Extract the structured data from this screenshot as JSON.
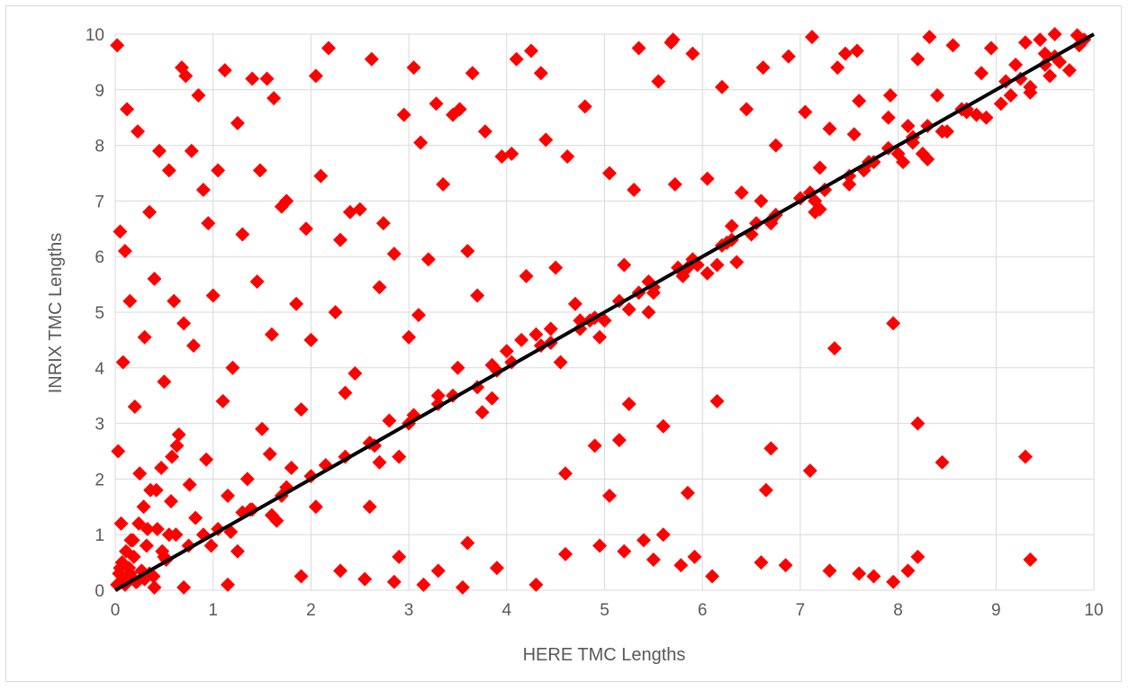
{
  "chart_data": {
    "type": "scatter",
    "title": "",
    "xlabel": "HERE TMC Lengths",
    "ylabel": "INRIX TMC Lengths",
    "xlim": [
      0,
      10
    ],
    "ylim": [
      0,
      10
    ],
    "x_ticks": [
      "0",
      "1",
      "2",
      "3",
      "4",
      "5",
      "6",
      "7",
      "8",
      "9",
      "10"
    ],
    "y_ticks": [
      "0",
      "1",
      "2",
      "3",
      "4",
      "5",
      "6",
      "7",
      "8",
      "9",
      "10"
    ],
    "grid": true,
    "legend": "none",
    "marker": "diamond",
    "series": [
      {
        "color": "#ff0000",
        "x": [
          0.02,
          0.12,
          0.23,
          0.45,
          0.68,
          0.72,
          0.85,
          1.12,
          1.4,
          1.55,
          1.62,
          2.05,
          2.18,
          2.62,
          3.05,
          3.28,
          3.45,
          3.65,
          4.1,
          4.25,
          4.35,
          4.8,
          5.35,
          5.55,
          5.68,
          5.7,
          5.9,
          6.2,
          6.45,
          6.62,
          6.88,
          7.12,
          7.38,
          7.46,
          7.58,
          7.92,
          8.2,
          8.32,
          8.56,
          8.95,
          9.3,
          9.45,
          9.6,
          9.83,
          0.05,
          0.35,
          0.55,
          0.78,
          0.9,
          1.05,
          1.25,
          1.48,
          1.75,
          1.95,
          2.3,
          2.5,
          2.74,
          2.95,
          3.12,
          3.35,
          3.52,
          3.78,
          3.95,
          4.05,
          4.4,
          4.62,
          5.05,
          5.3,
          5.72,
          6.05,
          6.4,
          6.75,
          7.05,
          7.3,
          7.6,
          7.9,
          8.4,
          8.85,
          9.2,
          9.5,
          0.1,
          0.4,
          0.6,
          0.95,
          1.3,
          1.7,
          2.1,
          2.4,
          2.85,
          3.2,
          3.6,
          4.2,
          4.5,
          5.2,
          5.85,
          6.3,
          6.6,
          7.2,
          7.55,
          8.1,
          8.5,
          9.05,
          9.55,
          0.15,
          0.3,
          0.7,
          1.0,
          1.45,
          1.85,
          2.25,
          2.7,
          3.1,
          3.7,
          4.15,
          4.7,
          5.0,
          5.45,
          6.15,
          6.55,
          7.25,
          7.75,
          8.3,
          8.8,
          9.35,
          0.08,
          0.5,
          0.8,
          1.2,
          1.6,
          2.0,
          2.45,
          3.0,
          3.5,
          4.0,
          4.45,
          4.9,
          5.5,
          5.95,
          6.5,
          7.0,
          7.5,
          8.0,
          8.45,
          9.15,
          9.65,
          0.2,
          0.65,
          1.1,
          1.5,
          1.9,
          2.35,
          2.8,
          3.3,
          3.85,
          4.3,
          4.75,
          5.25,
          5.8,
          6.2,
          6.7,
          7.15,
          7.65,
          8.15,
          8.7,
          9.25,
          0.03,
          0.25,
          0.42,
          0.58,
          0.76,
          0.93,
          1.15,
          1.35,
          1.58,
          1.8,
          0.06,
          0.18,
          0.33,
          0.48,
          0.62,
          0.82,
          0.98,
          1.18,
          1.38,
          1.65,
          4.6,
          4.95,
          5.2,
          5.4,
          5.6,
          5.78,
          5.92,
          6.1,
          6.6,
          6.85,
          7.3,
          7.6,
          7.75,
          7.95,
          8.1,
          8.2,
          9.35,
          4.3,
          3.9,
          3.6,
          3.3,
          2.9,
          2.6,
          5.5,
          5.05,
          6.65,
          7.1,
          8.2,
          8.45,
          9.3,
          7.35,
          7.95,
          6.15,
          6.7,
          5.85,
          5.15,
          4.6,
          4.9,
          5.6,
          5.25,
          0.4,
          0.1,
          0.3,
          0.15,
          0.05,
          0.22,
          0.7,
          1.15,
          1.9,
          2.3,
          2.55,
          2.85,
          3.15,
          3.55,
          0.5,
          0.9,
          1.3,
          1.75,
          2.15,
          2.6,
          3.05,
          3.45,
          3.9,
          4.35,
          4.85,
          5.35,
          5.75,
          6.25,
          6.75,
          7.25,
          7.7,
          8.15,
          8.65,
          9.1,
          9.6,
          9.9,
          1.25,
          2.05,
          2.9,
          3.75,
          4.55,
          5.45,
          6.35,
          7.2,
          8.05,
          8.9,
          9.75,
          0.35,
          0.75,
          1.05,
          1.4,
          1.7,
          2.0,
          2.35,
          2.65,
          3.0,
          3.3,
          3.7,
          4.05,
          4.45,
          4.75,
          5.15,
          5.5,
          5.9,
          6.3,
          6.7,
          7.1,
          7.5,
          7.9,
          8.3,
          8.7,
          9.1,
          9.5,
          9.85,
          0.55,
          1.6,
          2.7,
          3.85,
          4.95,
          6.05,
          7.15,
          8.25,
          9.35,
          0.02,
          0.04,
          0.07,
          0.09,
          0.11,
          0.14,
          0.16,
          0.19,
          0.21,
          0.24,
          0.27,
          0.29,
          0.32,
          0.36,
          0.39,
          0.43,
          0.47,
          0.52,
          0.57,
          0.63
        ],
        "y": [
          9.8,
          8.65,
          8.25,
          7.9,
          9.4,
          9.25,
          8.9,
          9.35,
          9.2,
          9.2,
          8.85,
          9.25,
          9.75,
          9.55,
          9.4,
          8.75,
          8.55,
          9.3,
          9.55,
          9.7,
          9.3,
          8.7,
          9.75,
          9.15,
          9.85,
          9.9,
          9.65,
          9.05,
          8.65,
          9.4,
          9.6,
          9.95,
          9.4,
          9.65,
          9.7,
          8.9,
          9.55,
          9.95,
          9.8,
          9.75,
          9.85,
          9.9,
          10.0,
          9.98,
          6.45,
          6.8,
          7.55,
          7.9,
          7.2,
          7.55,
          8.4,
          7.55,
          7.0,
          6.5,
          6.3,
          6.85,
          6.6,
          8.55,
          8.05,
          7.3,
          8.65,
          8.25,
          7.8,
          7.85,
          8.1,
          7.8,
          7.5,
          7.2,
          7.3,
          7.4,
          7.15,
          8.0,
          8.6,
          8.3,
          8.8,
          8.5,
          8.9,
          9.3,
          9.45,
          9.65,
          6.1,
          5.6,
          5.2,
          6.6,
          6.4,
          6.9,
          7.45,
          6.8,
          6.05,
          5.95,
          6.1,
          5.65,
          5.8,
          5.85,
          5.8,
          6.55,
          7.0,
          7.6,
          8.2,
          8.35,
          8.25,
          8.75,
          9.25,
          5.2,
          4.55,
          4.8,
          5.3,
          5.55,
          5.15,
          5.0,
          5.45,
          4.95,
          5.3,
          4.5,
          5.15,
          4.85,
          5.55,
          5.85,
          6.6,
          7.2,
          7.7,
          7.75,
          8.55,
          9.05,
          4.1,
          3.75,
          4.4,
          4.0,
          4.6,
          4.5,
          3.9,
          4.55,
          4.0,
          4.3,
          4.7,
          4.9,
          5.35,
          5.85,
          6.4,
          7.05,
          7.3,
          7.85,
          8.25,
          8.9,
          9.5,
          3.3,
          2.8,
          3.4,
          2.9,
          3.25,
          3.55,
          3.05,
          3.5,
          4.05,
          4.6,
          4.85,
          5.05,
          5.65,
          6.2,
          6.6,
          7.0,
          7.55,
          8.05,
          8.6,
          9.2,
          2.5,
          2.1,
          1.8,
          2.4,
          1.9,
          2.35,
          1.7,
          2.0,
          2.45,
          2.2,
          1.2,
          0.9,
          1.1,
          0.7,
          1.0,
          1.3,
          0.8,
          1.05,
          1.45,
          1.25,
          0.65,
          0.8,
          0.7,
          0.9,
          1.0,
          0.45,
          0.6,
          0.25,
          0.5,
          0.45,
          0.35,
          0.3,
          0.25,
          0.15,
          0.35,
          0.6,
          0.55,
          0.1,
          0.4,
          0.85,
          0.35,
          0.6,
          1.5,
          0.55,
          1.7,
          1.8,
          2.15,
          3.0,
          2.3,
          2.4,
          4.35,
          4.8,
          3.4,
          2.55,
          1.75,
          2.7,
          2.1,
          2.6,
          2.95,
          3.35,
          0.05,
          0.1,
          0.2,
          0.3,
          0.4,
          0.15,
          0.05,
          0.1,
          0.25,
          0.35,
          0.2,
          0.15,
          0.1,
          0.05,
          0.6,
          1.0,
          1.4,
          1.85,
          2.25,
          2.65,
          3.15,
          3.5,
          3.95,
          4.4,
          4.85,
          5.35,
          5.8,
          6.25,
          6.75,
          7.2,
          7.7,
          8.15,
          8.65,
          9.15,
          9.6,
          9.9,
          0.7,
          1.5,
          2.4,
          3.2,
          4.1,
          5.0,
          5.9,
          6.85,
          7.7,
          8.5,
          9.35,
          0.3,
          0.8,
          1.1,
          1.45,
          1.7,
          2.05,
          2.4,
          2.6,
          3.0,
          3.35,
          3.65,
          4.1,
          4.45,
          4.7,
          5.2,
          5.45,
          5.95,
          6.3,
          6.65,
          7.15,
          7.45,
          7.95,
          8.35,
          8.65,
          9.15,
          9.45,
          9.8,
          1.0,
          1.35,
          2.3,
          3.45,
          4.55,
          5.7,
          6.8,
          7.85,
          8.95,
          0.1,
          0.3,
          0.5,
          0.2,
          0.7,
          0.4,
          0.9,
          0.6,
          0.15,
          1.2,
          0.35,
          1.5,
          0.8,
          1.8,
          0.25,
          1.1,
          2.2,
          0.55,
          1.6,
          2.6
        ]
      }
    ],
    "trend_line": {
      "color": "#000000",
      "from": [
        0,
        0
      ],
      "to": [
        10,
        10
      ]
    }
  }
}
